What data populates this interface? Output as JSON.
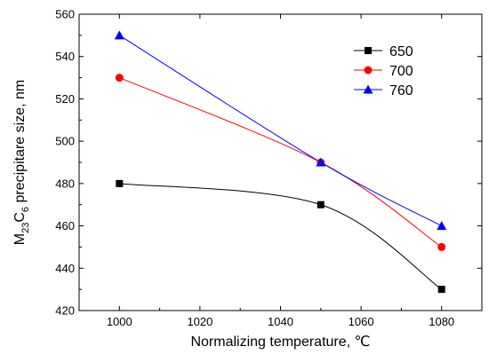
{
  "chart_data": {
    "type": "line",
    "xlabel": "Normalizing temperature, ℃",
    "ylabel": {
      "prefix": "M",
      "sub1": "23",
      "mid": "C",
      "sub2": "6",
      "suffix": " precipitare size, nm"
    },
    "xlim": [
      990,
      1090
    ],
    "ylim": [
      420,
      560
    ],
    "xticks": [
      1000,
      1020,
      1040,
      1060,
      1080
    ],
    "yticks": [
      420,
      440,
      460,
      480,
      500,
      520,
      540,
      560
    ],
    "x": [
      1000,
      1050,
      1080
    ],
    "legend_position": "top-right",
    "series": [
      {
        "name": "650",
        "values": [
          480,
          470,
          430
        ],
        "color": "#000000",
        "marker": "square"
      },
      {
        "name": "700",
        "values": [
          530,
          490,
          450
        ],
        "color": "#ff0000",
        "marker": "circle"
      },
      {
        "name": "760",
        "values": [
          550,
          490,
          460
        ],
        "color": "#0000ff",
        "marker": "triangle"
      }
    ]
  }
}
